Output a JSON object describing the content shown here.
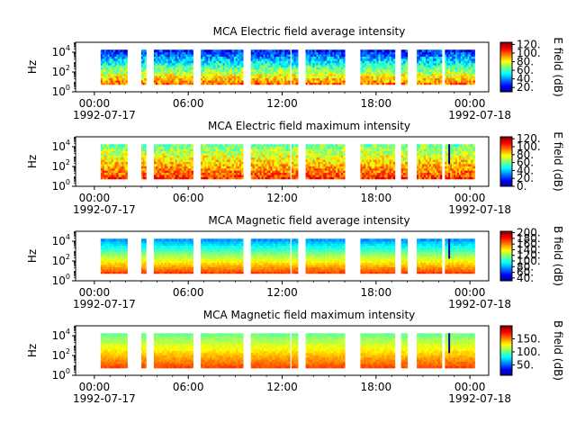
{
  "chart_data": [
    {
      "type": "heatmap",
      "title": "MCA  Electric field average intensity",
      "ylabel": "Hz",
      "yscale": "log",
      "ylim": [
        1,
        100000
      ],
      "y_ticks": [
        {
          "base": "10",
          "exp": "0",
          "pow": 0
        },
        {
          "base": "10",
          "exp": "2",
          "pow": 2
        },
        {
          "base": "10",
          "exp": "4",
          "pow": 4
        }
      ],
      "x_ticks": [
        {
          "h": 0,
          "time": "00:00",
          "date": "1992-07-17"
        },
        {
          "h": 6,
          "time": "06:00",
          "date": ""
        },
        {
          "h": 12,
          "time": "12:00",
          "date": ""
        },
        {
          "h": 18,
          "time": "18:00",
          "date": ""
        },
        {
          "h": 24,
          "time": "00:00",
          "date": "1992-07-18"
        }
      ],
      "xlim_hours": [
        -1.2,
        25.2
      ],
      "data_freq_range_hz": [
        5.6,
        17800
      ],
      "data_intervals_hours": [
        [
          0.4,
          2.1
        ],
        [
          3.0,
          3.3
        ],
        [
          3.8,
          6.3
        ],
        [
          6.8,
          9.5
        ],
        [
          10.0,
          12.5
        ],
        [
          12.6,
          13.0
        ],
        [
          13.5,
          16.0
        ],
        [
          17.0,
          19.2
        ],
        [
          19.6,
          20.0
        ],
        [
          20.6,
          22.2
        ],
        [
          22.4,
          24.3
        ]
      ],
      "colorbar": {
        "label": "E field (dB)",
        "min": 10,
        "max": 125,
        "ticks": [
          20,
          40,
          60,
          80,
          100,
          120
        ],
        "tick_labels": [
          "20.",
          "40.",
          "60.",
          "80.",
          "100.",
          "120."
        ]
      },
      "field_profile": {
        "floor_low_db": 100,
        "floor_high_db": 25,
        "noise_db": 14,
        "spike_db": 0
      }
    },
    {
      "type": "heatmap",
      "title": "MCA  Electric field maximum intensity",
      "ylabel": "Hz",
      "yscale": "log",
      "ylim": [
        1,
        100000
      ],
      "y_ticks": [
        {
          "base": "10",
          "exp": "0",
          "pow": 0
        },
        {
          "base": "10",
          "exp": "2",
          "pow": 2
        },
        {
          "base": "10",
          "exp": "4",
          "pow": 4
        }
      ],
      "x_ticks": [
        {
          "h": 0,
          "time": "00:00",
          "date": "1992-07-17"
        },
        {
          "h": 6,
          "time": "06:00",
          "date": ""
        },
        {
          "h": 12,
          "time": "12:00",
          "date": ""
        },
        {
          "h": 18,
          "time": "18:00",
          "date": ""
        },
        {
          "h": 24,
          "time": "00:00",
          "date": "1992-07-18"
        }
      ],
      "xlim_hours": [
        -1.2,
        25.2
      ],
      "data_freq_range_hz": [
        5.6,
        17800
      ],
      "data_intervals_hours": [
        [
          0.4,
          2.1
        ],
        [
          3.0,
          3.3
        ],
        [
          3.8,
          6.3
        ],
        [
          6.8,
          9.5
        ],
        [
          10.0,
          12.5
        ],
        [
          12.6,
          13.0
        ],
        [
          13.5,
          16.0
        ],
        [
          17.0,
          19.2
        ],
        [
          19.6,
          20.0
        ],
        [
          20.6,
          22.2
        ],
        [
          22.4,
          24.3
        ]
      ],
      "colorbar": {
        "label": "E field (dB)",
        "min": 0,
        "max": 125,
        "ticks": [
          0,
          20,
          40,
          60,
          80,
          100,
          120
        ],
        "tick_labels": [
          "0.",
          "20.",
          "40.",
          "60.",
          "80.",
          "100.",
          "120."
        ]
      },
      "field_profile": {
        "floor_low_db": 105,
        "floor_high_db": 60,
        "noise_db": 14,
        "spike_db": 5
      }
    },
    {
      "type": "heatmap",
      "title": "MCA  Magnetic field average intensity",
      "ylabel": "Hz",
      "yscale": "log",
      "ylim": [
        1,
        100000
      ],
      "y_ticks": [
        {
          "base": "10",
          "exp": "0",
          "pow": 0
        },
        {
          "base": "10",
          "exp": "2",
          "pow": 2
        },
        {
          "base": "10",
          "exp": "4",
          "pow": 4
        }
      ],
      "x_ticks": [
        {
          "h": 0,
          "time": "00:00",
          "date": "1992-07-17"
        },
        {
          "h": 6,
          "time": "06:00",
          "date": ""
        },
        {
          "h": 12,
          "time": "12:00",
          "date": ""
        },
        {
          "h": 18,
          "time": "18:00",
          "date": ""
        },
        {
          "h": 24,
          "time": "00:00",
          "date": "1992-07-18"
        }
      ],
      "xlim_hours": [
        -1.2,
        25.2
      ],
      "data_freq_range_hz": [
        5.6,
        17800
      ],
      "data_intervals_hours": [
        [
          0.4,
          2.1
        ],
        [
          3.0,
          3.3
        ],
        [
          3.8,
          6.3
        ],
        [
          6.8,
          9.5
        ],
        [
          10.0,
          12.5
        ],
        [
          12.6,
          13.0
        ],
        [
          13.5,
          16.0
        ],
        [
          17.0,
          19.2
        ],
        [
          19.6,
          20.0
        ],
        [
          20.6,
          22.2
        ],
        [
          22.4,
          24.3
        ]
      ],
      "colorbar": {
        "label": "B field (dB)",
        "min": 30,
        "max": 205,
        "ticks": [
          40,
          60,
          80,
          100,
          120,
          140,
          160,
          180,
          200
        ],
        "tick_labels": [
          "40.",
          "60.",
          "80.",
          "100.",
          "120.",
          "140.",
          "160.",
          "180.",
          "200."
        ]
      },
      "field_profile": {
        "floor_low_db": 175,
        "floor_high_db": 75,
        "noise_db": 6,
        "spike_db": 40
      }
    },
    {
      "type": "heatmap",
      "title": "MCA  Magnetic field maximum intensity",
      "ylabel": "Hz",
      "yscale": "log",
      "ylim": [
        1,
        100000
      ],
      "y_ticks": [
        {
          "base": "10",
          "exp": "0",
          "pow": 0
        },
        {
          "base": "10",
          "exp": "2",
          "pow": 2
        },
        {
          "base": "10",
          "exp": "4",
          "pow": 4
        }
      ],
      "x_ticks": [
        {
          "h": 0,
          "time": "00:00",
          "date": "1992-07-17"
        },
        {
          "h": 6,
          "time": "06:00",
          "date": ""
        },
        {
          "h": 12,
          "time": "12:00",
          "date": ""
        },
        {
          "h": 18,
          "time": "18:00",
          "date": ""
        },
        {
          "h": 24,
          "time": "00:00",
          "date": "1992-07-18"
        }
      ],
      "xlim_hours": [
        -1.2,
        25.2
      ],
      "data_freq_range_hz": [
        5.6,
        17800
      ],
      "data_intervals_hours": [
        [
          0.4,
          2.1
        ],
        [
          3.0,
          3.3
        ],
        [
          3.8,
          6.3
        ],
        [
          6.8,
          9.5
        ],
        [
          10.0,
          12.5
        ],
        [
          12.6,
          13.0
        ],
        [
          13.5,
          16.0
        ],
        [
          17.0,
          19.2
        ],
        [
          19.6,
          20.0
        ],
        [
          20.6,
          22.2
        ],
        [
          22.4,
          24.3
        ]
      ],
      "colorbar": {
        "label": "B field (dB)",
        "min": 10,
        "max": 200,
        "ticks": [
          50,
          100,
          150
        ],
        "tick_labels": [
          "50.",
          "100.",
          "150."
        ]
      },
      "field_profile": {
        "floor_low_db": 165,
        "floor_high_db": 100,
        "noise_db": 6,
        "spike_db": 40
      }
    }
  ]
}
